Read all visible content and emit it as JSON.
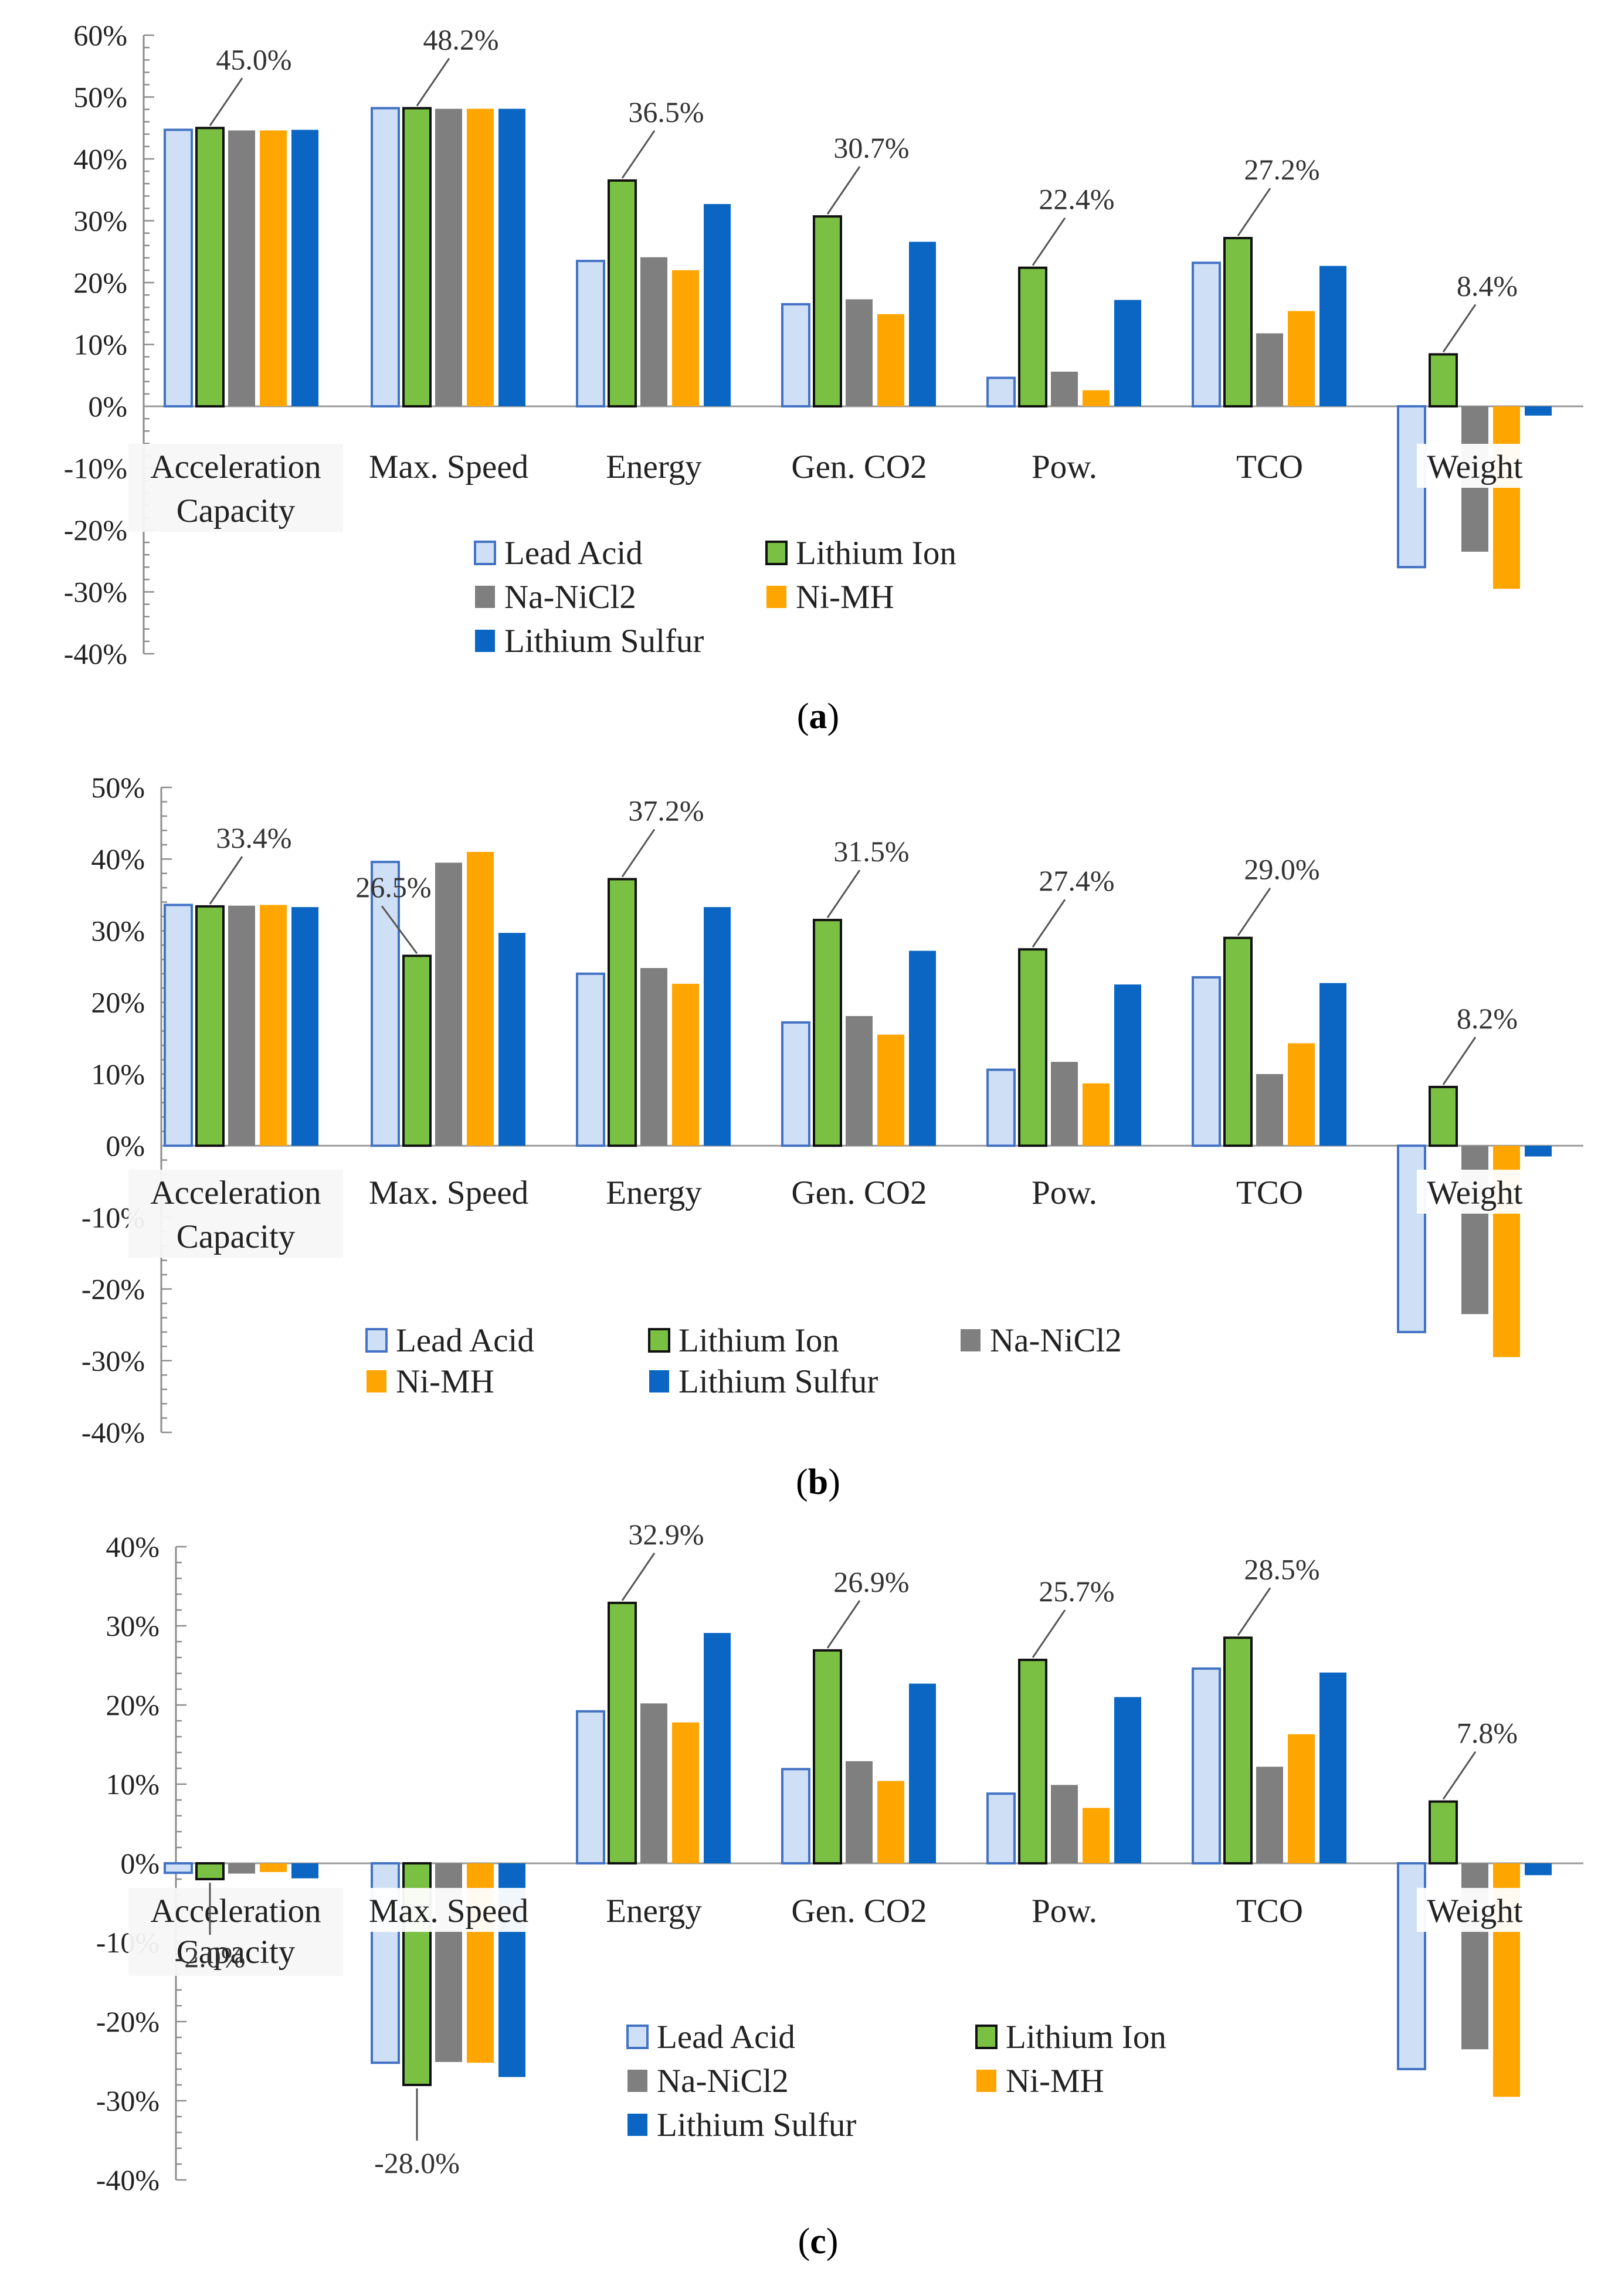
{
  "series_colors": {
    "Lead Acid": {
      "fill": "#cfe0f6",
      "stroke": "#4472c4"
    },
    "Lithium Ion": {
      "fill": "#7ac143",
      "stroke": "#111111"
    },
    "Na-NiCl2": {
      "fill": "#7f7f7f",
      "stroke": "none"
    },
    "Ni-MH": {
      "fill": "#ffa500",
      "stroke": "none"
    },
    "Lithium Sulfur": {
      "fill": "#0a66c2",
      "stroke": "none"
    }
  },
  "chart_data": [
    {
      "type": "bar",
      "panel_label": "a",
      "categories": [
        "Acceleration Capacity",
        "Max. Speed",
        "Energy",
        "Gen. CO2",
        "Pow.",
        "TCO",
        "Weight"
      ],
      "category_label_lines": [
        [
          "Acceleration",
          "Capacity"
        ],
        [
          "Max. Speed"
        ],
        [
          "Energy"
        ],
        [
          "Gen. CO2"
        ],
        [
          "Pow."
        ],
        [
          "TCO"
        ],
        [
          "Weight"
        ]
      ],
      "series": [
        {
          "name": "Lead Acid",
          "values": [
            44.7,
            48.2,
            23.5,
            16.5,
            4.6,
            23.2,
            -26.0
          ]
        },
        {
          "name": "Lithium Ion",
          "values": [
            45.0,
            48.2,
            36.5,
            30.7,
            22.4,
            27.2,
            8.4
          ]
        },
        {
          "name": "Na-NiCl2",
          "values": [
            44.6,
            48.1,
            24.1,
            17.3,
            5.6,
            11.8,
            -23.5
          ]
        },
        {
          "name": "Ni-MH",
          "values": [
            44.6,
            48.1,
            22.0,
            14.9,
            2.6,
            15.4,
            -29.5
          ]
        },
        {
          "name": "Lithium Sulfur",
          "values": [
            44.7,
            48.1,
            32.7,
            26.6,
            17.2,
            22.7,
            -1.5
          ]
        }
      ],
      "ylim": [
        -40,
        60
      ],
      "yticks": [
        -40,
        -30,
        -20,
        -10,
        0,
        10,
        20,
        30,
        40,
        50,
        60
      ],
      "ytick_labels": [
        "-40%",
        "-30%",
        "-20%",
        "-10%",
        "0%",
        "10%",
        "20%",
        "30%",
        "40%",
        "50%",
        "60%"
      ],
      "annotations": [
        {
          "category": "Acceleration Capacity",
          "series": "Lithium Ion",
          "text": "45.0%"
        },
        {
          "category": "Max. Speed",
          "series": "Lithium Ion",
          "text": "48.2%"
        },
        {
          "category": "Energy",
          "series": "Lithium Ion",
          "text": "36.5%"
        },
        {
          "category": "Gen. CO2",
          "series": "Lithium Ion",
          "text": "30.7%"
        },
        {
          "category": "Pow.",
          "series": "Lithium Ion",
          "text": "22.4%"
        },
        {
          "category": "TCO",
          "series": "Lithium Ion",
          "text": "27.2%"
        },
        {
          "category": "Weight",
          "series": "Lithium Ion",
          "text": "8.4%"
        }
      ],
      "legend": [
        [
          "Lead Acid",
          "Lithium Ion"
        ],
        [
          "Na-NiCl2",
          "Ni-MH"
        ],
        [
          "Lithium Sulfur"
        ]
      ],
      "xlabel": "",
      "ylabel": "",
      "grid": false
    },
    {
      "type": "bar",
      "panel_label": "b",
      "categories": [
        "Acceleration Capacity",
        "Max. Speed",
        "Energy",
        "Gen. CO2",
        "Pow.",
        "TCO",
        "Weight"
      ],
      "category_label_lines": [
        [
          "Acceleration",
          "Capacity"
        ],
        [
          "Max. Speed"
        ],
        [
          "Energy"
        ],
        [
          "Gen. CO2"
        ],
        [
          "Pow."
        ],
        [
          "TCO"
        ],
        [
          "Weight"
        ]
      ],
      "series": [
        {
          "name": "Lead Acid",
          "values": [
            33.6,
            39.6,
            24.0,
            17.2,
            10.6,
            23.5,
            -26.0
          ]
        },
        {
          "name": "Lithium Ion",
          "values": [
            33.4,
            26.5,
            37.2,
            31.5,
            27.4,
            29.0,
            8.2
          ]
        },
        {
          "name": "Na-NiCl2",
          "values": [
            33.5,
            39.5,
            24.8,
            18.1,
            11.7,
            10.0,
            -23.5
          ]
        },
        {
          "name": "Ni-MH",
          "values": [
            33.6,
            41.0,
            22.6,
            15.5,
            8.7,
            14.3,
            -29.5
          ]
        },
        {
          "name": "Lithium Sulfur",
          "values": [
            33.3,
            29.7,
            33.3,
            27.2,
            22.5,
            22.7,
            -1.5
          ]
        }
      ],
      "ylim": [
        -40,
        50
      ],
      "yticks": [
        -40,
        -30,
        -20,
        -10,
        0,
        10,
        20,
        30,
        40,
        50
      ],
      "ytick_labels": [
        "-40%",
        "-30%",
        "-20%",
        "-10%",
        "0%",
        "10%",
        "20%",
        "30%",
        "40%",
        "50%"
      ],
      "annotations": [
        {
          "category": "Acceleration Capacity",
          "series": "Lithium Ion",
          "text": "33.4%"
        },
        {
          "category": "Max. Speed",
          "series": "Lithium Ion",
          "text": "26.5%"
        },
        {
          "category": "Energy",
          "series": "Lithium Ion",
          "text": "37.2%"
        },
        {
          "category": "Gen. CO2",
          "series": "Lithium Ion",
          "text": "31.5%"
        },
        {
          "category": "Pow.",
          "series": "Lithium Ion",
          "text": "27.4%"
        },
        {
          "category": "TCO",
          "series": "Lithium Ion",
          "text": "29.0%"
        },
        {
          "category": "Weight",
          "series": "Lithium Ion",
          "text": "8.2%"
        }
      ],
      "legend": [
        [
          "Lead Acid",
          "Lithium Ion",
          "Na-NiCl2"
        ],
        [
          "Ni-MH",
          "Lithium Sulfur"
        ]
      ],
      "xlabel": "",
      "ylabel": "",
      "grid": false
    },
    {
      "type": "bar",
      "panel_label": "c",
      "categories": [
        "Acceleration Capacity",
        "Max. Speed",
        "Energy",
        "Gen. CO2",
        "Pow.",
        "TCO",
        "Weight"
      ],
      "category_label_lines": [
        [
          "Acceleration",
          "Capacity"
        ],
        [
          "Max. Speed"
        ],
        [
          "Energy"
        ],
        [
          "Gen. CO2"
        ],
        [
          "Pow."
        ],
        [
          "TCO"
        ],
        [
          "Weight"
        ]
      ],
      "series": [
        {
          "name": "Lead Acid",
          "values": [
            -1.2,
            -25.2,
            19.2,
            11.9,
            8.8,
            24.6,
            -26.0
          ]
        },
        {
          "name": "Lithium Ion",
          "values": [
            -2.0,
            -28.0,
            32.9,
            26.9,
            25.7,
            28.5,
            7.8
          ]
        },
        {
          "name": "Na-NiCl2",
          "values": [
            -1.3,
            -25.1,
            20.2,
            12.9,
            9.9,
            12.2,
            -23.5
          ]
        },
        {
          "name": "Ni-MH",
          "values": [
            -1.1,
            -25.2,
            17.8,
            10.4,
            7.0,
            16.3,
            -29.5
          ]
        },
        {
          "name": "Lithium Sulfur",
          "values": [
            -1.9,
            -27.0,
            29.1,
            22.7,
            21.0,
            24.1,
            -1.5
          ]
        }
      ],
      "ylim": [
        -40,
        40
      ],
      "yticks": [
        -40,
        -30,
        -20,
        -10,
        0,
        10,
        20,
        30,
        40
      ],
      "ytick_labels": [
        "-40%",
        "-30%",
        "-20%",
        "-10%",
        "0%",
        "10%",
        "20%",
        "30%",
        "40%"
      ],
      "annotations": [
        {
          "category": "Acceleration Capacity",
          "series": "Lithium Ion",
          "text": "-2.0%"
        },
        {
          "category": "Max. Speed",
          "series": "Lithium Ion",
          "text": "-28.0%"
        },
        {
          "category": "Energy",
          "series": "Lithium Ion",
          "text": "32.9%"
        },
        {
          "category": "Gen. CO2",
          "series": "Lithium Ion",
          "text": "26.9%"
        },
        {
          "category": "Pow.",
          "series": "Lithium Ion",
          "text": "25.7%"
        },
        {
          "category": "TCO",
          "series": "Lithium Ion",
          "text": "28.5%"
        },
        {
          "category": "Weight",
          "series": "Lithium Ion",
          "text": "7.8%"
        }
      ],
      "legend": [
        [
          "Lead Acid",
          "Lithium Ion"
        ],
        [
          "Na-NiCl2",
          "Ni-MH"
        ],
        [
          "Lithium Sulfur"
        ]
      ],
      "xlabel": "",
      "ylabel": "",
      "grid": false
    }
  ]
}
